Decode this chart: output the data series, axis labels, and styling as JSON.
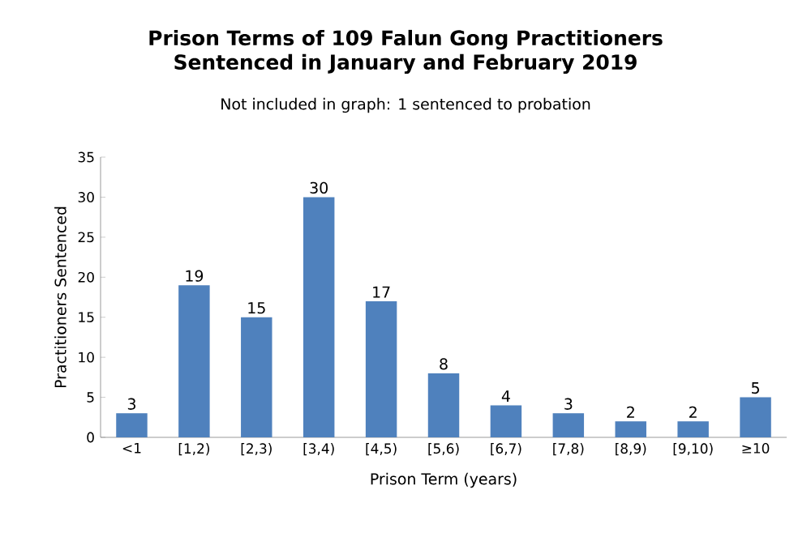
{
  "chart_data": {
    "type": "bar",
    "title": "Prison Terms of 109 Falun Gong Practitioners\nSentenced in January and February 2019",
    "subtitle": "Not included in graph:  1 sentenced to probation",
    "xlabel": "Prison Term (years)",
    "ylabel": "Practitioners Sentenced",
    "categories": [
      "<1",
      "[1,2)",
      "[2,3)",
      "[3,4)",
      "[4,5)",
      "[5,6)",
      "[6,7)",
      "[7,8)",
      "[8,9)",
      "[9,10)",
      "≥10"
    ],
    "values": [
      3,
      19,
      15,
      30,
      17,
      8,
      4,
      3,
      2,
      2,
      5
    ],
    "color": "#4f81bd",
    "ylim": [
      0,
      35
    ],
    "yticks": [
      0,
      5,
      10,
      15,
      20,
      25,
      30,
      35
    ],
    "data_labels": true
  }
}
